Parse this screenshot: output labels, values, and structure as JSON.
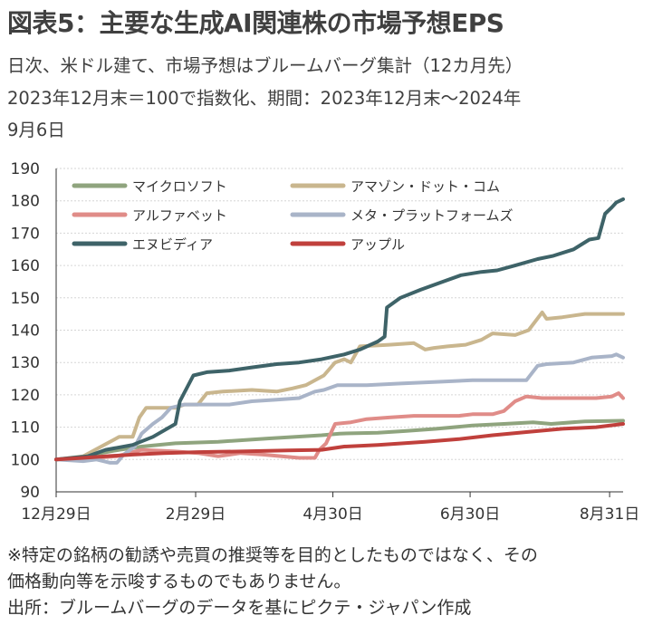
{
  "header": {
    "title": "図表5：主要な生成AI関連株の市場予想EPS",
    "subtitle_line1": "日次、米ドル建て、市場予想はブルームバーグ集計（12カ月先）",
    "subtitle_line2": "2023年12月末＝100で指数化、期間：2023年12月末～2024年",
    "subtitle_line3": "9月6日"
  },
  "footer": {
    "note_line1": "※特定の銘柄の勧誘や売買の推奨等を目的としたものではなく、その",
    "note_line2": "価格動向等を示唆するものでもありません。",
    "source": "出所：ブルームバーグのデータを基にピクテ・ジャパン作成"
  },
  "chart_data": {
    "type": "line",
    "title": "",
    "xlabel": "",
    "ylabel": "",
    "xlim": [
      "2023-12-29",
      "2024-09-06"
    ],
    "ylim": [
      90,
      190
    ],
    "yticks": [
      90,
      100,
      110,
      120,
      130,
      140,
      150,
      160,
      170,
      180,
      190
    ],
    "xticks": [
      {
        "date": "2023-12-29",
        "label": "12月29日"
      },
      {
        "date": "2024-02-29",
        "label": "2月29日"
      },
      {
        "date": "2024-04-30",
        "label": "4月30日"
      },
      {
        "date": "2024-06-30",
        "label": "6月30日"
      },
      {
        "date": "2024-08-31",
        "label": "8月31日"
      }
    ],
    "grid": "horizontal",
    "legend": "top, two columns",
    "series": [
      {
        "name": "マイクロソフト",
        "color": "#8fa47e",
        "points": [
          [
            "2023-12-29",
            100
          ],
          [
            "2024-01-08",
            100.5
          ],
          [
            "2024-01-18",
            102
          ],
          [
            "2024-01-26",
            103
          ],
          [
            "2024-02-05",
            104
          ],
          [
            "2024-02-20",
            105
          ],
          [
            "2024-03-10",
            105.5
          ],
          [
            "2024-04-01",
            106.5
          ],
          [
            "2024-04-25",
            107.5
          ],
          [
            "2024-05-03",
            108
          ],
          [
            "2024-05-20",
            108.3
          ],
          [
            "2024-06-01",
            108.8
          ],
          [
            "2024-06-15",
            109.5
          ],
          [
            "2024-07-01",
            110.5
          ],
          [
            "2024-07-15",
            111
          ],
          [
            "2024-07-28",
            111.5
          ],
          [
            "2024-08-05",
            111
          ],
          [
            "2024-08-20",
            111.8
          ],
          [
            "2024-09-06",
            112
          ]
        ]
      },
      {
        "name": "アマゾン・ドット・コム",
        "color": "#c9b68e",
        "points": [
          [
            "2023-12-29",
            100
          ],
          [
            "2024-01-10",
            101
          ],
          [
            "2024-01-18",
            104
          ],
          [
            "2024-01-26",
            107
          ],
          [
            "2024-02-01",
            107
          ],
          [
            "2024-02-04",
            113
          ],
          [
            "2024-02-07",
            116
          ],
          [
            "2024-02-20",
            116
          ],
          [
            "2024-02-24",
            117
          ],
          [
            "2024-03-01",
            117
          ],
          [
            "2024-03-05",
            120.5
          ],
          [
            "2024-03-12",
            121
          ],
          [
            "2024-03-25",
            121.5
          ],
          [
            "2024-04-05",
            121
          ],
          [
            "2024-04-12",
            122
          ],
          [
            "2024-04-18",
            123
          ],
          [
            "2024-04-26",
            126
          ],
          [
            "2024-05-01",
            130
          ],
          [
            "2024-05-05",
            131
          ],
          [
            "2024-05-08",
            130
          ],
          [
            "2024-05-12",
            135
          ],
          [
            "2024-05-25",
            135.5
          ],
          [
            "2024-06-05",
            136
          ],
          [
            "2024-06-10",
            134
          ],
          [
            "2024-06-14",
            134.5
          ],
          [
            "2024-06-20",
            135
          ],
          [
            "2024-06-28",
            135.5
          ],
          [
            "2024-07-05",
            137
          ],
          [
            "2024-07-10",
            139
          ],
          [
            "2024-07-20",
            138.5
          ],
          [
            "2024-07-26",
            140
          ],
          [
            "2024-08-01",
            145.5
          ],
          [
            "2024-08-03",
            143.5
          ],
          [
            "2024-08-10",
            144
          ],
          [
            "2024-08-20",
            145
          ],
          [
            "2024-09-06",
            145
          ]
        ]
      },
      {
        "name": "アルファベット",
        "color": "#e08c88",
        "points": [
          [
            "2023-12-29",
            100
          ],
          [
            "2024-01-15",
            100.5
          ],
          [
            "2024-01-25",
            101
          ],
          [
            "2024-02-05",
            103
          ],
          [
            "2024-02-20",
            102.5
          ],
          [
            "2024-03-01",
            102
          ],
          [
            "2024-03-10",
            101
          ],
          [
            "2024-03-20",
            102
          ],
          [
            "2024-03-30",
            101.5
          ],
          [
            "2024-04-15",
            100.5
          ],
          [
            "2024-04-22",
            100.5
          ],
          [
            "2024-04-24",
            103
          ],
          [
            "2024-04-27",
            105
          ],
          [
            "2024-05-01",
            111
          ],
          [
            "2024-05-08",
            111.5
          ],
          [
            "2024-05-15",
            112.5
          ],
          [
            "2024-05-25",
            113
          ],
          [
            "2024-06-05",
            113.5
          ],
          [
            "2024-06-15",
            113.5
          ],
          [
            "2024-06-25",
            113.5
          ],
          [
            "2024-07-01",
            114
          ],
          [
            "2024-07-10",
            114
          ],
          [
            "2024-07-15",
            115
          ],
          [
            "2024-07-20",
            118
          ],
          [
            "2024-07-25",
            119.5
          ],
          [
            "2024-08-01",
            119
          ],
          [
            "2024-08-15",
            119
          ],
          [
            "2024-08-25",
            119
          ],
          [
            "2024-09-01",
            119.5
          ],
          [
            "2024-09-04",
            120.5
          ],
          [
            "2024-09-06",
            119
          ]
        ]
      },
      {
        "name": "メタ・プラットフォームズ",
        "color": "#a9b4c8",
        "points": [
          [
            "2023-12-29",
            100
          ],
          [
            "2024-01-10",
            99.5
          ],
          [
            "2024-01-16",
            100
          ],
          [
            "2024-01-22",
            99
          ],
          [
            "2024-01-25",
            99
          ],
          [
            "2024-01-28",
            101.5
          ],
          [
            "2024-02-02",
            104
          ],
          [
            "2024-02-05",
            108
          ],
          [
            "2024-02-10",
            111
          ],
          [
            "2024-02-14",
            113
          ],
          [
            "2024-02-18",
            116
          ],
          [
            "2024-02-24",
            117
          ],
          [
            "2024-03-05",
            117
          ],
          [
            "2024-03-15",
            117
          ],
          [
            "2024-03-25",
            118
          ],
          [
            "2024-04-05",
            118.5
          ],
          [
            "2024-04-15",
            119
          ],
          [
            "2024-04-22",
            121
          ],
          [
            "2024-04-26",
            121.5
          ],
          [
            "2024-05-02",
            123
          ],
          [
            "2024-05-15",
            123
          ],
          [
            "2024-05-30",
            123.5
          ],
          [
            "2024-06-15",
            124
          ],
          [
            "2024-07-01",
            124.5
          ],
          [
            "2024-07-15",
            124.5
          ],
          [
            "2024-07-25",
            124.5
          ],
          [
            "2024-07-30",
            129
          ],
          [
            "2024-08-03",
            129.5
          ],
          [
            "2024-08-15",
            130
          ],
          [
            "2024-08-23",
            131.5
          ],
          [
            "2024-09-01",
            132
          ],
          [
            "2024-09-03",
            132.5
          ],
          [
            "2024-09-06",
            131.5
          ]
        ]
      },
      {
        "name": "エヌビディア",
        "color": "#3e6368",
        "points": [
          [
            "2023-12-29",
            100
          ],
          [
            "2024-01-05",
            100.5
          ],
          [
            "2024-01-12",
            101
          ],
          [
            "2024-01-20",
            103
          ],
          [
            "2024-02-01",
            104.5
          ],
          [
            "2024-02-10",
            107
          ],
          [
            "2024-02-20",
            111
          ],
          [
            "2024-02-22",
            118
          ],
          [
            "2024-02-28",
            126
          ],
          [
            "2024-03-05",
            127
          ],
          [
            "2024-03-15",
            127.5
          ],
          [
            "2024-03-25",
            128.5
          ],
          [
            "2024-04-05",
            129.5
          ],
          [
            "2024-04-15",
            130
          ],
          [
            "2024-04-25",
            131
          ],
          [
            "2024-05-05",
            132.5
          ],
          [
            "2024-05-12",
            134
          ],
          [
            "2024-05-20",
            136.5
          ],
          [
            "2024-05-23",
            138
          ],
          [
            "2024-05-24",
            147
          ],
          [
            "2024-05-30",
            150
          ],
          [
            "2024-06-08",
            152.5
          ],
          [
            "2024-06-18",
            155
          ],
          [
            "2024-06-26",
            157
          ],
          [
            "2024-07-05",
            158
          ],
          [
            "2024-07-12",
            158.5
          ],
          [
            "2024-07-20",
            160
          ],
          [
            "2024-07-30",
            162
          ],
          [
            "2024-08-06",
            163
          ],
          [
            "2024-08-15",
            165
          ],
          [
            "2024-08-22",
            168
          ],
          [
            "2024-08-26",
            168.5
          ],
          [
            "2024-08-29",
            176
          ],
          [
            "2024-09-01",
            178
          ],
          [
            "2024-09-03",
            179.5
          ],
          [
            "2024-09-06",
            180.5
          ]
        ]
      },
      {
        "name": "アップル",
        "color": "#c0403c",
        "points": [
          [
            "2023-12-29",
            100
          ],
          [
            "2024-01-10",
            100.5
          ],
          [
            "2024-01-20",
            101
          ],
          [
            "2024-02-01",
            101.5
          ],
          [
            "2024-02-15",
            102
          ],
          [
            "2024-03-01",
            102.3
          ],
          [
            "2024-03-20",
            102.5
          ],
          [
            "2024-04-10",
            102.8
          ],
          [
            "2024-04-25",
            103
          ],
          [
            "2024-05-05",
            104
          ],
          [
            "2024-05-20",
            104.5
          ],
          [
            "2024-06-10",
            105.5
          ],
          [
            "2024-06-25",
            106.3
          ],
          [
            "2024-07-10",
            107.5
          ],
          [
            "2024-07-25",
            108.5
          ],
          [
            "2024-08-10",
            109.5
          ],
          [
            "2024-08-25",
            110
          ],
          [
            "2024-09-06",
            111
          ]
        ]
      }
    ]
  }
}
